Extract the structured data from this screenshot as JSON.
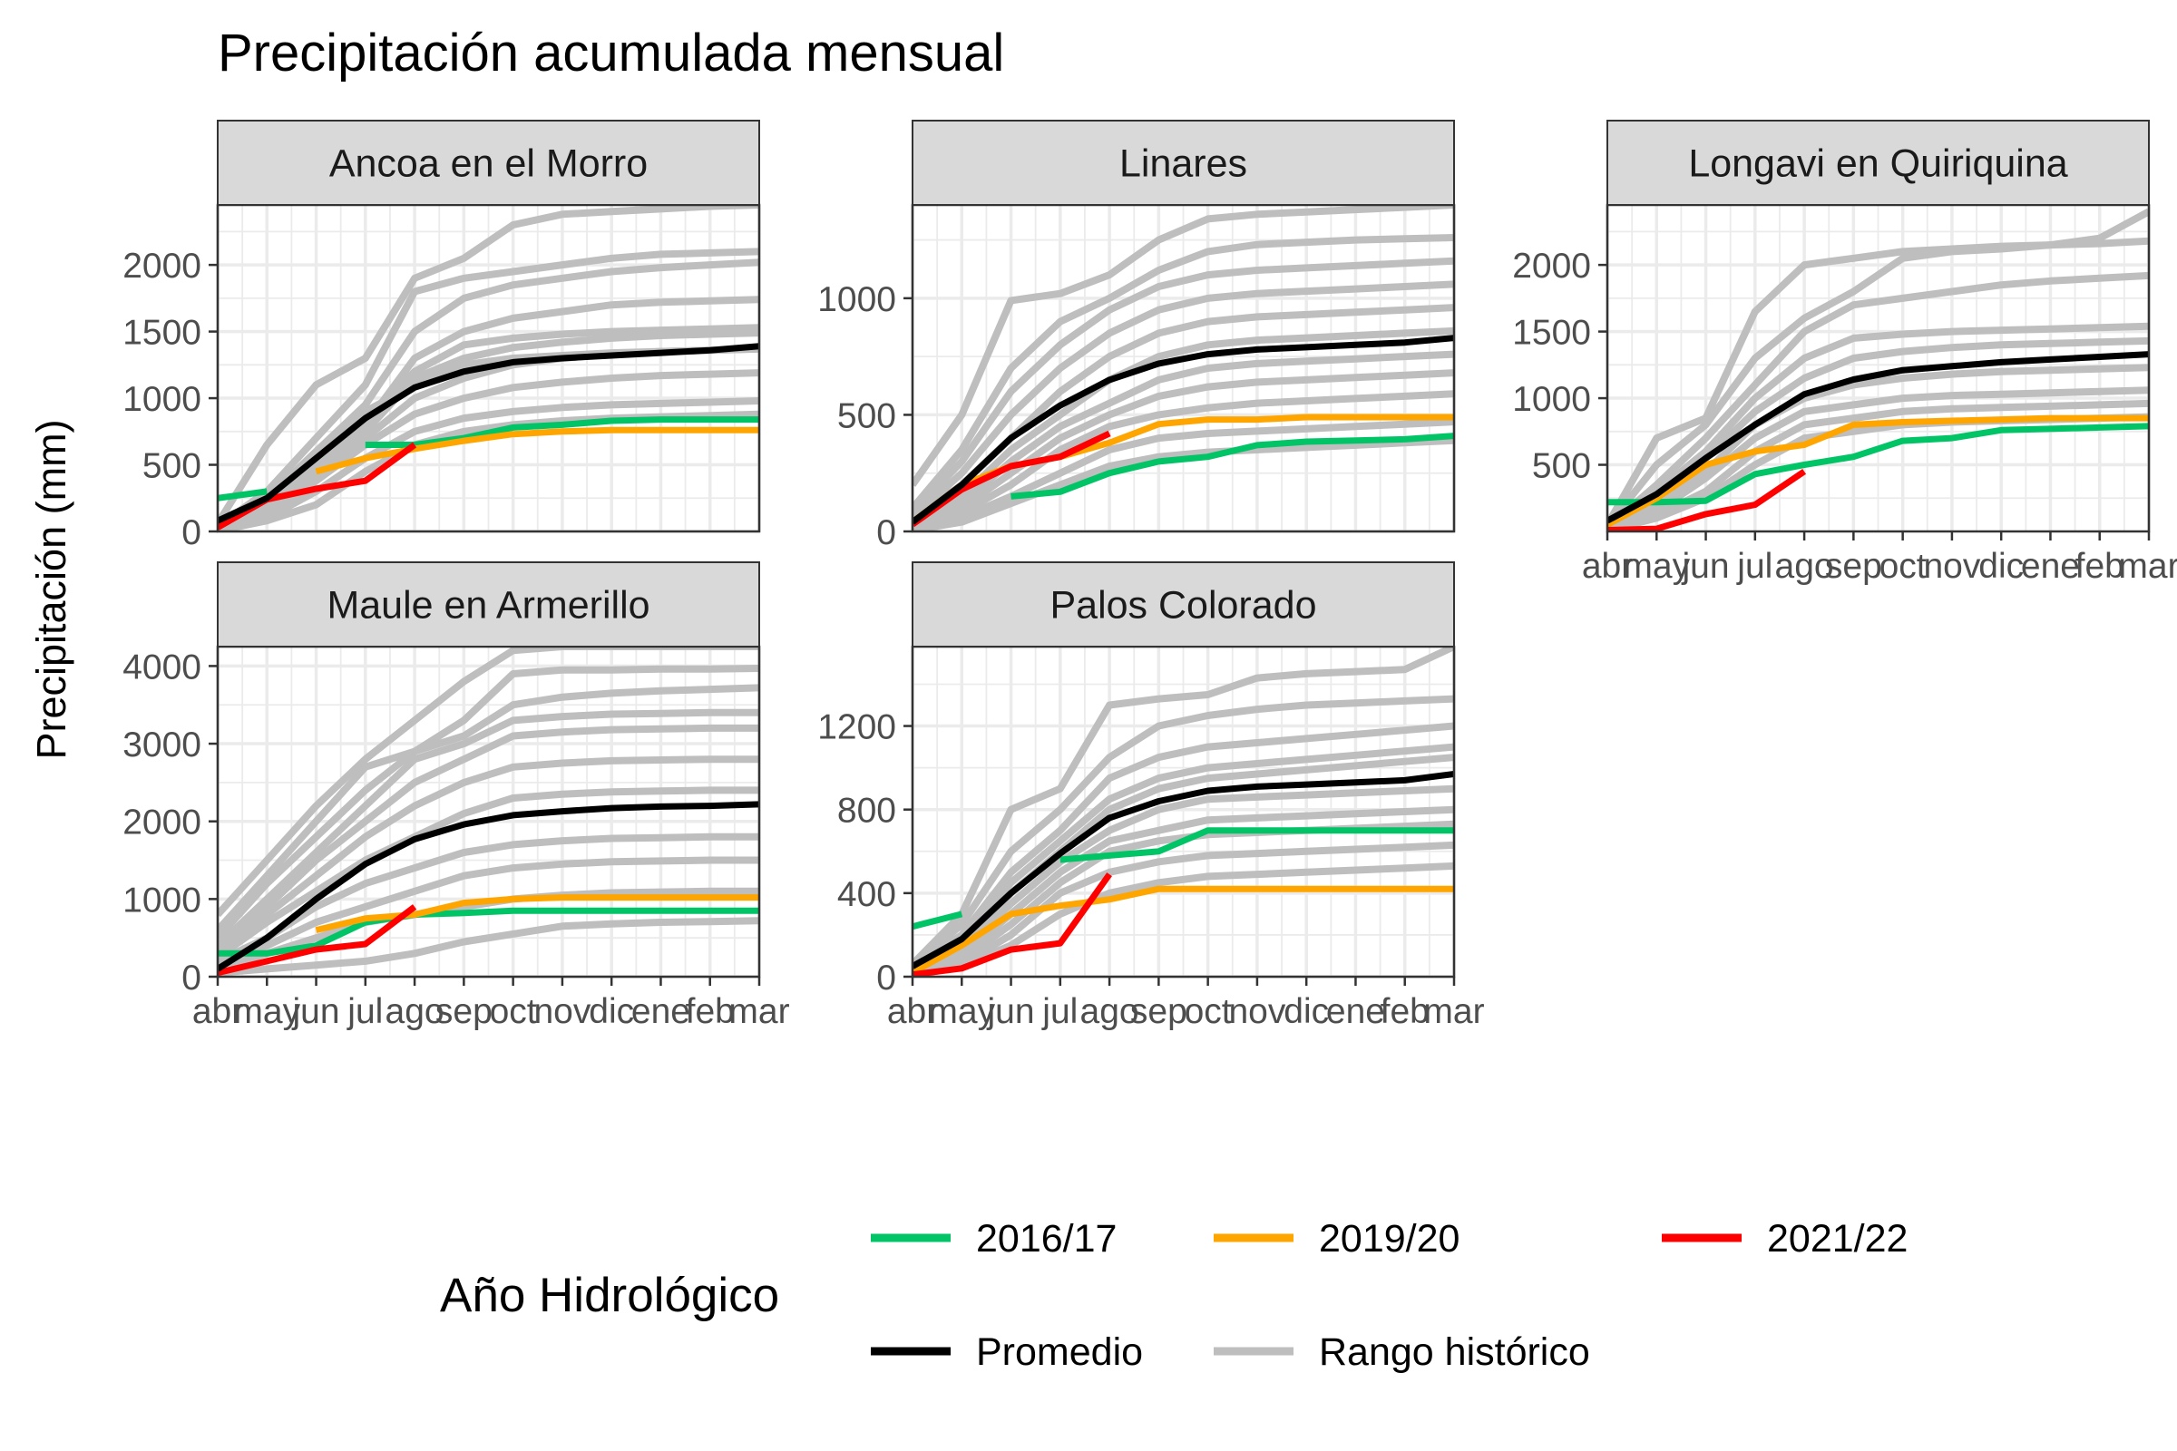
{
  "title": "Precipitación acumulada mensual",
  "ylabel": "Precipitación (mm)",
  "legend": {
    "title": "Año Hidrológico",
    "items": [
      {
        "label": "2016/17",
        "color": "#00c466"
      },
      {
        "label": "2019/20",
        "color": "#ffa500"
      },
      {
        "label": "2021/22",
        "color": "#ff0000"
      },
      {
        "label": "Promedio",
        "color": "#000000"
      },
      {
        "label": "Rango histórico",
        "color": "#bebebe"
      }
    ]
  },
  "chart_data": [
    {
      "type": "line",
      "facet": "Ancoa en el Morro",
      "categories": [
        "abr",
        "may",
        "jun",
        "jul",
        "ago",
        "sep",
        "oct",
        "nov",
        "dic",
        "ene",
        "feb",
        "mar"
      ],
      "ylim": [
        0,
        2450
      ],
      "yticks": [
        0,
        500,
        1000,
        1500,
        2000
      ],
      "show_x_axis": false,
      "historical": [
        [
          60,
          650,
          1100,
          1300,
          1900,
          2050,
          2300,
          2380,
          2400,
          2420,
          2440,
          2450
        ],
        [
          40,
          300,
          700,
          1100,
          1800,
          1900,
          1950,
          2000,
          2050,
          2080,
          2090,
          2100
        ],
        [
          50,
          250,
          600,
          950,
          1500,
          1750,
          1850,
          1900,
          1950,
          1980,
          2000,
          2020
        ],
        [
          30,
          200,
          500,
          800,
          1300,
          1500,
          1600,
          1650,
          1700,
          1720,
          1730,
          1740
        ],
        [
          20,
          180,
          450,
          750,
          1150,
          1300,
          1380,
          1420,
          1450,
          1470,
          1480,
          1490
        ],
        [
          25,
          150,
          420,
          700,
          1000,
          1150,
          1250,
          1300,
          1330,
          1350,
          1360,
          1370
        ],
        [
          15,
          120,
          380,
          650,
          880,
          1000,
          1080,
          1120,
          1150,
          1170,
          1180,
          1190
        ],
        [
          10,
          100,
          300,
          550,
          750,
          850,
          900,
          930,
          950,
          960,
          970,
          980
        ],
        [
          5,
          80,
          200,
          450,
          650,
          750,
          800,
          830,
          850,
          860,
          870,
          880
        ],
        [
          20,
          160,
          500,
          850,
          1200,
          1400,
          1450,
          1480,
          1500,
          1510,
          1520,
          1530
        ],
        [
          40,
          220,
          550,
          900,
          1100,
          1250,
          1300,
          1320,
          1340,
          1350,
          1360,
          1370
        ]
      ],
      "series": [
        {
          "name": "2016/17",
          "values": [
            250,
            300,
            null,
            650,
            650,
            700,
            780,
            800,
            830,
            840,
            840,
            840
          ]
        },
        {
          "name": "2019/20",
          "values": [
            null,
            null,
            450,
            550,
            620,
            680,
            730,
            750,
            760,
            760,
            760,
            760
          ]
        },
        {
          "name": "2021/22",
          "values": [
            30,
            240,
            320,
            380,
            650,
            null,
            null,
            null,
            null,
            null,
            null,
            null
          ]
        },
        {
          "name": "Promedio",
          "values": [
            80,
            250,
            550,
            850,
            1080,
            1200,
            1270,
            1300,
            1320,
            1340,
            1360,
            1390
          ]
        }
      ]
    },
    {
      "type": "line",
      "facet": "Linares",
      "categories": [
        "abr",
        "may",
        "jun",
        "jul",
        "ago",
        "sep",
        "oct",
        "nov",
        "dic",
        "ene",
        "feb",
        "mar"
      ],
      "ylim": [
        0,
        1400
      ],
      "yticks": [
        0,
        500,
        1000
      ],
      "show_x_axis": false,
      "historical": [
        [
          200,
          500,
          990,
          1020,
          1100,
          1250,
          1340,
          1360,
          1370,
          1380,
          1390,
          1400
        ],
        [
          100,
          350,
          700,
          900,
          1000,
          1120,
          1200,
          1230,
          1240,
          1250,
          1255,
          1260
        ],
        [
          80,
          300,
          600,
          800,
          950,
          1050,
          1100,
          1120,
          1130,
          1140,
          1150,
          1160
        ],
        [
          60,
          250,
          500,
          700,
          850,
          950,
          1000,
          1020,
          1030,
          1040,
          1050,
          1060
        ],
        [
          50,
          200,
          400,
          600,
          750,
          850,
          900,
          920,
          930,
          940,
          950,
          960
        ],
        [
          40,
          150,
          350,
          500,
          650,
          750,
          800,
          820,
          830,
          840,
          850,
          860
        ],
        [
          30,
          120,
          300,
          450,
          550,
          650,
          700,
          720,
          730,
          740,
          750,
          760
        ],
        [
          20,
          100,
          250,
          400,
          500,
          580,
          620,
          640,
          650,
          660,
          670,
          680
        ],
        [
          10,
          80,
          200,
          350,
          450,
          500,
          530,
          550,
          560,
          570,
          580,
          590
        ],
        [
          5,
          60,
          150,
          250,
          350,
          400,
          420,
          430,
          440,
          450,
          460,
          470
        ],
        [
          5,
          40,
          120,
          200,
          280,
          320,
          340,
          350,
          360,
          370,
          380,
          390
        ]
      ],
      "series": [
        {
          "name": "2016/17",
          "values": [
            null,
            null,
            150,
            170,
            250,
            300,
            320,
            370,
            385,
            390,
            395,
            410
          ]
        },
        {
          "name": "2019/20",
          "values": [
            40,
            200,
            280,
            320,
            380,
            460,
            480,
            480,
            490,
            490,
            490,
            490
          ]
        },
        {
          "name": "2021/22",
          "values": [
            30,
            180,
            280,
            320,
            420,
            null,
            null,
            null,
            null,
            null,
            null,
            null
          ]
        },
        {
          "name": "Promedio",
          "values": [
            40,
            200,
            400,
            540,
            650,
            720,
            760,
            780,
            790,
            800,
            810,
            830
          ]
        }
      ]
    },
    {
      "type": "line",
      "facet": "Longavi en Quiriquina",
      "categories": [
        "abr",
        "may",
        "jun",
        "jul",
        "ago",
        "sep",
        "oct",
        "nov",
        "dic",
        "ene",
        "feb",
        "mar"
      ],
      "ylim": [
        0,
        2450
      ],
      "yticks": [
        500,
        1000,
        1500,
        2000
      ],
      "show_x_axis": true,
      "historical": [
        [
          50,
          700,
          850,
          1650,
          2000,
          2050,
          2100,
          2120,
          2140,
          2150,
          2160,
          2180
        ],
        [
          40,
          500,
          800,
          1300,
          1600,
          1800,
          2050,
          2100,
          2120,
          2150,
          2200,
          2400
        ],
        [
          30,
          350,
          700,
          1100,
          1500,
          1700,
          1750,
          1800,
          1850,
          1880,
          1900,
          1920
        ],
        [
          25,
          300,
          600,
          1000,
          1300,
          1450,
          1480,
          1500,
          1510,
          1520,
          1530,
          1540
        ],
        [
          20,
          250,
          550,
          900,
          1150,
          1300,
          1350,
          1380,
          1400,
          1410,
          1420,
          1430
        ],
        [
          15,
          200,
          450,
          800,
          1000,
          1100,
          1150,
          1180,
          1200,
          1210,
          1220,
          1230
        ],
        [
          10,
          150,
          400,
          700,
          900,
          950,
          1000,
          1020,
          1030,
          1040,
          1050,
          1060
        ],
        [
          8,
          120,
          300,
          600,
          800,
          850,
          900,
          920,
          930,
          940,
          950,
          960
        ],
        [
          5,
          100,
          250,
          500,
          700,
          750,
          800,
          820,
          830,
          840,
          850,
          860
        ]
      ],
      "series": [
        {
          "name": "2016/17",
          "values": [
            220,
            220,
            230,
            430,
            500,
            560,
            680,
            700,
            760,
            770,
            780,
            790
          ]
        },
        {
          "name": "2019/20",
          "values": [
            50,
            250,
            500,
            600,
            650,
            800,
            820,
            830,
            840,
            850,
            850,
            850
          ]
        },
        {
          "name": "2021/22",
          "values": [
            10,
            20,
            130,
            200,
            450,
            null,
            null,
            null,
            null,
            null,
            null,
            null
          ]
        },
        {
          "name": "Promedio",
          "values": [
            80,
            280,
            550,
            800,
            1030,
            1140,
            1210,
            1240,
            1270,
            1290,
            1310,
            1330
          ]
        }
      ]
    },
    {
      "type": "line",
      "facet": "Maule en Armerillo",
      "categories": [
        "abr",
        "may",
        "jun",
        "jul",
        "ago",
        "sep",
        "oct",
        "nov",
        "dic",
        "ene",
        "feb",
        "mar"
      ],
      "ylim": [
        0,
        4250
      ],
      "yticks": [
        0,
        1000,
        2000,
        3000,
        4000
      ],
      "show_x_axis": true,
      "historical": [
        [
          800,
          1500,
          2200,
          2800,
          3300,
          3800,
          4200,
          4250,
          4250,
          4250,
          4250,
          4250
        ],
        [
          600,
          1300,
          2000,
          2700,
          2900,
          3300,
          3900,
          3950,
          3950,
          3960,
          3960,
          3970
        ],
        [
          500,
          1200,
          1800,
          2400,
          2900,
          3100,
          3500,
          3600,
          3650,
          3680,
          3700,
          3720
        ],
        [
          400,
          1000,
          1600,
          2200,
          2800,
          3000,
          3300,
          3350,
          3380,
          3390,
          3400,
          3400
        ],
        [
          350,
          900,
          1500,
          2000,
          2500,
          2800,
          3100,
          3150,
          3180,
          3190,
          3200,
          3200
        ],
        [
          300,
          800,
          1300,
          1800,
          2200,
          2500,
          2700,
          2750,
          2780,
          2790,
          2800,
          2800
        ],
        [
          250,
          700,
          1100,
          1500,
          1800,
          2100,
          2300,
          2350,
          2380,
          2390,
          2400,
          2400
        ],
        [
          200,
          500,
          900,
          1200,
          1400,
          1600,
          1700,
          1750,
          1780,
          1790,
          1800,
          1800
        ],
        [
          150,
          400,
          700,
          900,
          1100,
          1300,
          1400,
          1450,
          1480,
          1490,
          1500,
          1500
        ],
        [
          100,
          300,
          500,
          700,
          800,
          900,
          1000,
          1050,
          1080,
          1090,
          1100,
          1100
        ],
        [
          50,
          100,
          150,
          200,
          300,
          450,
          550,
          650,
          680,
          700,
          710,
          720
        ]
      ],
      "series": [
        {
          "name": "2016/17",
          "values": [
            300,
            300,
            400,
            700,
            800,
            820,
            850,
            850,
            850,
            850,
            850,
            850
          ]
        },
        {
          "name": "2019/20",
          "values": [
            null,
            null,
            600,
            750,
            800,
            950,
            1000,
            1020,
            1020,
            1020,
            1020,
            1020
          ]
        },
        {
          "name": "2021/22",
          "values": [
            50,
            200,
            350,
            420,
            900,
            null,
            null,
            null,
            null,
            null,
            null,
            null
          ]
        },
        {
          "name": "Promedio",
          "values": [
            100,
            500,
            1000,
            1450,
            1770,
            1960,
            2080,
            2130,
            2170,
            2190,
            2200,
            2220
          ]
        }
      ]
    },
    {
      "type": "line",
      "facet": "Palos Colorado",
      "categories": [
        "abr",
        "may",
        "jun",
        "jul",
        "ago",
        "sep",
        "oct",
        "nov",
        "dic",
        "ene",
        "feb",
        "mar"
      ],
      "ylim": [
        0,
        1580
      ],
      "yticks": [
        0,
        400,
        800,
        1200
      ],
      "show_x_axis": true,
      "historical": [
        [
          60,
          300,
          800,
          900,
          1300,
          1330,
          1350,
          1430,
          1450,
          1460,
          1470,
          1580
        ],
        [
          50,
          250,
          600,
          800,
          1050,
          1200,
          1250,
          1280,
          1300,
          1310,
          1320,
          1330
        ],
        [
          40,
          200,
          500,
          700,
          950,
          1050,
          1100,
          1120,
          1140,
          1160,
          1180,
          1200
        ],
        [
          30,
          180,
          450,
          650,
          850,
          950,
          1000,
          1020,
          1040,
          1060,
          1080,
          1100
        ],
        [
          25,
          150,
          400,
          600,
          800,
          900,
          950,
          970,
          990,
          1010,
          1030,
          1050
        ],
        [
          20,
          120,
          350,
          550,
          700,
          800,
          850,
          860,
          870,
          880,
          890,
          900
        ],
        [
          15,
          100,
          300,
          500,
          650,
          700,
          750,
          760,
          770,
          780,
          790,
          800
        ],
        [
          10,
          80,
          250,
          450,
          600,
          650,
          680,
          690,
          700,
          710,
          720,
          730
        ],
        [
          5,
          60,
          200,
          400,
          500,
          550,
          580,
          590,
          600,
          610,
          620,
          630
        ],
        [
          5,
          50,
          150,
          300,
          400,
          450,
          480,
          490,
          500,
          510,
          520,
          530
        ]
      ],
      "series": [
        {
          "name": "2016/17",
          "values": [
            240,
            300,
            null,
            560,
            580,
            600,
            700,
            700,
            700,
            700,
            700,
            700
          ]
        },
        {
          "name": "2019/20",
          "values": [
            20,
            150,
            300,
            340,
            370,
            420,
            420,
            420,
            420,
            420,
            420,
            420
          ]
        },
        {
          "name": "2021/22",
          "values": [
            10,
            40,
            130,
            160,
            490,
            null,
            null,
            null,
            null,
            null,
            null,
            null
          ]
        },
        {
          "name": "Promedio",
          "values": [
            50,
            180,
            400,
            590,
            760,
            840,
            890,
            910,
            920,
            930,
            940,
            970
          ]
        }
      ]
    }
  ]
}
